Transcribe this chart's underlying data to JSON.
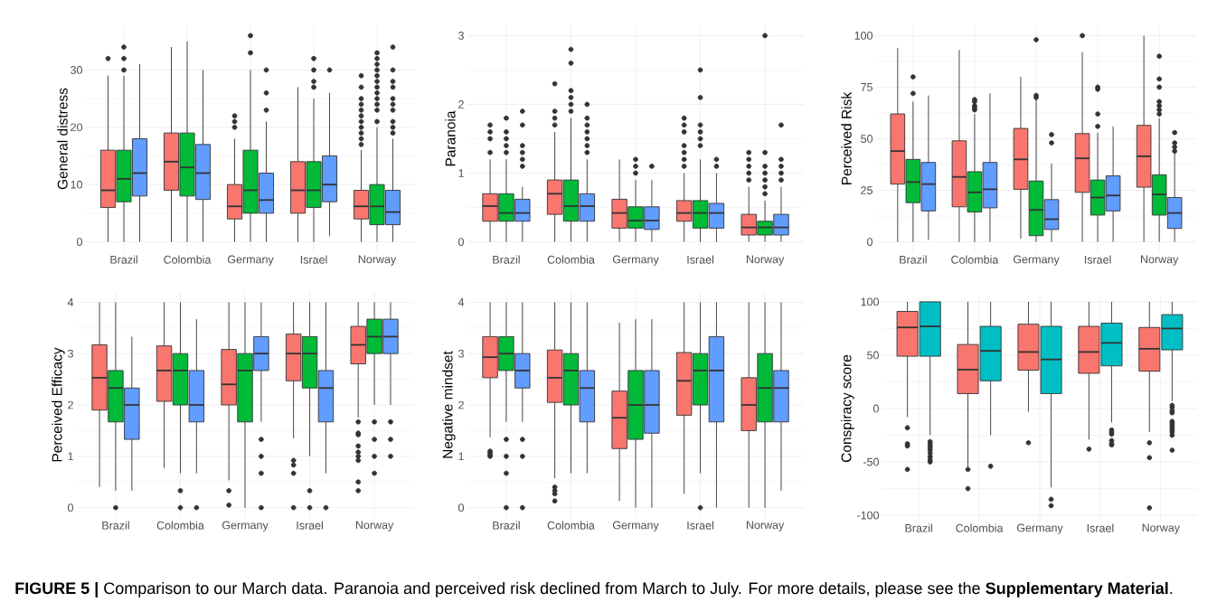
{
  "chart_data": [
    {
      "type": "box",
      "ylabel": "General distress",
      "categories": [
        "Brazil",
        "Colombia",
        "Germany",
        "Israel",
        "Norway"
      ],
      "ylim": [
        -1.8,
        37.8
      ],
      "yticks": [
        0,
        10,
        20,
        30
      ],
      "grid": true,
      "series": [
        {
          "color": "#f8766d",
          "boxes": [
            {
              "low": 0,
              "q1": 6,
              "median": 9,
              "q3": 16,
              "high": 29,
              "outliers": [
                32
              ]
            },
            {
              "low": 0,
              "q1": 9,
              "median": 14,
              "q3": 19,
              "high": 34
            },
            {
              "low": 0,
              "q1": 4,
              "median": 6.2,
              "q3": 10,
              "high": 18,
              "outliers": [
                20,
                21,
                22
              ]
            },
            {
              "low": 0,
              "q1": 5,
              "median": 9,
              "q3": 14,
              "high": 27
            },
            {
              "low": 0,
              "q1": 4,
              "median": 6.2,
              "q3": 9,
              "high": 16,
              "outliers": [
                17,
                18,
                19,
                20,
                21,
                22,
                23,
                24,
                25,
                27,
                29
              ]
            }
          ]
        },
        {
          "color": "#00ba38",
          "boxes": [
            {
              "low": 0,
              "q1": 7,
              "median": 11,
              "q3": 16,
              "high": 29,
              "outliers": [
                30,
                32,
                34
              ]
            },
            {
              "low": 0,
              "q1": 8,
              "median": 13,
              "q3": 19,
              "high": 35
            },
            {
              "low": 0,
              "q1": 5,
              "median": 9,
              "q3": 16,
              "high": 30,
              "outliers": [
                33,
                36
              ]
            },
            {
              "low": 0,
              "q1": 6,
              "median": 9,
              "q3": 14,
              "high": 25,
              "outliers": [
                27,
                28,
                30,
                32
              ]
            },
            {
              "low": 0,
              "q1": 3,
              "median": 6.2,
              "q3": 10,
              "high": 20,
              "outliers": [
                21,
                23,
                24,
                25,
                26,
                27,
                28,
                29,
                30,
                31,
                32,
                33
              ]
            }
          ]
        },
        {
          "color": "#619cff",
          "boxes": [
            {
              "low": 0,
              "q1": 8,
              "median": 12,
              "q3": 18,
              "high": 31
            },
            {
              "low": 0,
              "q1": 7.4,
              "median": 12,
              "q3": 17,
              "high": 30
            },
            {
              "low": 0,
              "q1": 5,
              "median": 7.3,
              "q3": 12,
              "high": 21,
              "outliers": [
                23,
                26,
                30
              ]
            },
            {
              "low": 1,
              "q1": 7,
              "median": 10,
              "q3": 15,
              "high": 26,
              "outliers": [
                30
              ]
            },
            {
              "low": 0,
              "q1": 3,
              "median": 5.2,
              "q3": 9,
              "high": 18,
              "outliers": [
                19,
                20,
                21,
                23,
                24,
                25,
                27,
                28,
                30,
                34
              ]
            }
          ]
        }
      ]
    },
    {
      "type": "box",
      "ylabel": "Paranoia",
      "categories": [
        "Brazil",
        "Colombia",
        "Germany",
        "Israel",
        "Norway"
      ],
      "ylim": [
        -0.15,
        3.15
      ],
      "yticks": [
        0,
        1,
        2,
        3
      ],
      "grid": true,
      "series": [
        {
          "color": "#f8766d",
          "boxes": [
            {
              "low": 0,
              "q1": 0.3,
              "median": 0.52,
              "q3": 0.7,
              "high": 1.2,
              "outliers": [
                1.3,
                1.5,
                1.6,
                1.7
              ]
            },
            {
              "low": 0,
              "q1": 0.4,
              "median": 0.7,
              "q3": 0.9,
              "high": 1.6,
              "outliers": [
                1.7,
                1.8,
                1.9,
                2.3
              ]
            },
            {
              "low": 0,
              "q1": 0.2,
              "median": 0.42,
              "q3": 0.62,
              "high": 1.2
            },
            {
              "low": 0,
              "q1": 0.3,
              "median": 0.42,
              "q3": 0.6,
              "high": 1.0,
              "outliers": [
                1.1,
                1.2,
                1.3,
                1.4,
                1.6,
                1.7,
                1.8
              ]
            },
            {
              "low": 0,
              "q1": 0.1,
              "median": 0.21,
              "q3": 0.4,
              "high": 0.8,
              "outliers": [
                0.9,
                1.0,
                1.1,
                1.2,
                1.3
              ]
            }
          ]
        },
        {
          "color": "#00ba38",
          "boxes": [
            {
              "low": 0,
              "q1": 0.3,
              "median": 0.42,
              "q3": 0.7,
              "high": 1.2,
              "outliers": [
                1.3,
                1.4,
                1.5,
                1.6,
                1.8
              ]
            },
            {
              "low": 0,
              "q1": 0.3,
              "median": 0.52,
              "q3": 0.9,
              "high": 1.8,
              "outliers": [
                1.9,
                2.0,
                2.1,
                2.2,
                2.6,
                2.8
              ]
            },
            {
              "low": 0,
              "q1": 0.2,
              "median": 0.31,
              "q3": 0.51,
              "high": 0.9,
              "outliers": [
                1.0,
                1.1,
                1.2
              ]
            },
            {
              "low": 0,
              "q1": 0.2,
              "median": 0.42,
              "q3": 0.6,
              "high": 1.2,
              "outliers": [
                1.4,
                1.5,
                1.6,
                1.7,
                2.1,
                2.5
              ]
            },
            {
              "low": 0,
              "q1": 0.1,
              "median": 0.21,
              "q3": 0.3,
              "high": 0.6,
              "outliers": [
                0.7,
                0.8,
                0.9,
                1.0,
                1.1,
                1.3,
                3.0
              ]
            }
          ]
        },
        {
          "color": "#619cff",
          "boxes": [
            {
              "low": 0,
              "q1": 0.3,
              "median": 0.42,
              "q3": 0.62,
              "high": 0.8,
              "outliers": [
                1.1,
                1.2,
                1.3,
                1.4,
                1.7,
                1.9
              ]
            },
            {
              "low": 0,
              "q1": 0.3,
              "median": 0.52,
              "q3": 0.7,
              "high": 1.2,
              "outliers": [
                1.3,
                1.4,
                1.5,
                1.6,
                1.7,
                1.8,
                2.0
              ]
            },
            {
              "low": 0,
              "q1": 0.18,
              "median": 0.31,
              "q3": 0.51,
              "high": 0.9,
              "outliers": [
                1.1
              ]
            },
            {
              "low": 0,
              "q1": 0.2,
              "median": 0.42,
              "q3": 0.56,
              "high": 1.0,
              "outliers": [
                1.1,
                1.2
              ]
            },
            {
              "low": 0,
              "q1": 0.1,
              "median": 0.21,
              "q3": 0.4,
              "high": 0.8,
              "outliers": [
                0.9,
                1.0,
                1.1,
                1.2,
                1.7
              ]
            }
          ]
        }
      ]
    },
    {
      "type": "box",
      "ylabel": "Perceived Risk",
      "categories": [
        "Brazil",
        "Colombia",
        "Germany",
        "Israel",
        "Norway"
      ],
      "ylim": [
        -5,
        105
      ],
      "yticks": [
        0,
        25,
        50,
        75,
        100
      ],
      "grid": true,
      "series": [
        {
          "color": "#f8766d",
          "boxes": [
            {
              "low": 0,
              "q1": 28,
              "median": 44,
              "q3": 62,
              "high": 94
            },
            {
              "low": 0,
              "q1": 17,
              "median": 31.5,
              "q3": 49,
              "high": 93
            },
            {
              "low": 1.5,
              "q1": 25.5,
              "median": 40,
              "q3": 55,
              "high": 80
            },
            {
              "low": 0,
              "q1": 24,
              "median": 40.5,
              "q3": 52.5,
              "high": 92,
              "outliers": [
                100
              ]
            },
            {
              "low": 0,
              "q1": 26.5,
              "median": 41.5,
              "q3": 56.5,
              "high": 100
            }
          ]
        },
        {
          "color": "#00ba38",
          "boxes": [
            {
              "low": 0,
              "q1": 19,
              "median": 29,
              "q3": 40,
              "high": 68,
              "outliers": [
                72,
                80
              ]
            },
            {
              "low": 0,
              "q1": 14.5,
              "median": 24,
              "q3": 34,
              "high": 62,
              "outliers": [
                64,
                65,
                66,
                68,
                69
              ]
            },
            {
              "low": 0,
              "q1": 3,
              "median": 15.5,
              "q3": 29.5,
              "high": 69,
              "outliers": [
                70,
                71,
                98
              ]
            },
            {
              "low": 0,
              "q1": 13,
              "median": 21.5,
              "q3": 30,
              "high": 53,
              "outliers": [
                56,
                62,
                74,
                75
              ]
            },
            {
              "low": 0,
              "q1": 13,
              "median": 23,
              "q3": 32.5,
              "high": 60,
              "outliers": [
                62,
                64,
                66,
                68,
                75,
                79,
                90
              ]
            }
          ]
        },
        {
          "color": "#619cff",
          "boxes": [
            {
              "low": 1,
              "q1": 15,
              "median": 28,
              "q3": 38.5,
              "high": 71
            },
            {
              "low": 0,
              "q1": 16.5,
              "median": 25.5,
              "q3": 38.5,
              "high": 72
            },
            {
              "low": 0,
              "q1": 6,
              "median": 11,
              "q3": 20.5,
              "high": 38,
              "outliers": [
                48,
                52
              ]
            },
            {
              "low": 0,
              "q1": 15,
              "median": 22.5,
              "q3": 32,
              "high": 56
            },
            {
              "low": 0,
              "q1": 6.5,
              "median": 14,
              "q3": 21.5,
              "high": 43,
              "outliers": [
                44,
                46,
                48,
                53
              ]
            }
          ]
        }
      ]
    },
    {
      "type": "box",
      "ylabel": "Perceived Efficacy",
      "categories": [
        "Brazil",
        "Colombia",
        "Germany",
        "Israel",
        "Norway"
      ],
      "ylim": [
        -0.2,
        4.2
      ],
      "yticks": [
        0,
        1,
        2,
        3,
        4
      ],
      "grid": true,
      "series": [
        {
          "color": "#f8766d",
          "boxes": [
            {
              "low": 0.4,
              "q1": 1.9,
              "median": 2.53,
              "q3": 3.17,
              "high": 4
            },
            {
              "low": 0.77,
              "q1": 2.07,
              "median": 2.67,
              "q3": 3.15,
              "high": 4
            },
            {
              "low": 0.53,
              "q1": 2,
              "median": 2.4,
              "q3": 3.08,
              "high": 4,
              "outliers": [
                0.05,
                0.33
              ]
            },
            {
              "low": 1.35,
              "q1": 2.47,
              "median": 3.0,
              "q3": 3.38,
              "high": 4,
              "outliers": [
                0,
                0.67,
                0.83,
                0.92
              ]
            },
            {
              "low": 1.75,
              "q1": 2.8,
              "median": 3.17,
              "q3": 3.53,
              "high": 4,
              "outliers": [
                0.33,
                0.5,
                0.92,
                1.0,
                1.08,
                1.2,
                1.42,
                1.45,
                1.67
              ]
            }
          ]
        },
        {
          "color": "#00ba38",
          "boxes": [
            {
              "low": 0.33,
              "q1": 1.67,
              "median": 2.33,
              "q3": 2.67,
              "high": 4,
              "outliers": [
                0
              ]
            },
            {
              "low": 0.67,
              "q1": 2,
              "median": 2.67,
              "q3": 3,
              "high": 4,
              "outliers": [
                0,
                0.33
              ]
            },
            {
              "low": 0,
              "q1": 1.67,
              "median": 2.67,
              "q3": 3,
              "high": 4
            },
            {
              "low": 1.0,
              "q1": 2.33,
              "median": 3.0,
              "q3": 3.33,
              "high": 4,
              "outliers": [
                0,
                0.33
              ]
            },
            {
              "low": 2.0,
              "q1": 3.0,
              "median": 3.33,
              "q3": 3.67,
              "high": 4,
              "outliers": [
                0.67,
                1,
                1.33,
                1.67
              ]
            }
          ]
        },
        {
          "color": "#619cff",
          "boxes": [
            {
              "low": 0.33,
              "q1": 1.33,
              "median": 2.0,
              "q3": 2.33,
              "high": 3.33
            },
            {
              "low": 0.67,
              "q1": 1.67,
              "median": 2.0,
              "q3": 2.67,
              "high": 3.67,
              "outliers": [
                0
              ]
            },
            {
              "low": 1.67,
              "q1": 2.67,
              "median": 3.0,
              "q3": 3.33,
              "high": 4,
              "outliers": [
                0,
                0.67,
                1,
                1.33
              ]
            },
            {
              "low": 0.67,
              "q1": 1.67,
              "median": 2.33,
              "q3": 2.67,
              "high": 4,
              "outliers": [
                0
              ]
            },
            {
              "low": 2.0,
              "q1": 3.0,
              "median": 3.33,
              "q3": 3.67,
              "high": 4,
              "outliers": [
                1,
                1.33,
                1.67
              ]
            }
          ]
        }
      ]
    },
    {
      "type": "box",
      "ylabel": "Negative mindset",
      "categories": [
        "Brazil",
        "Colombia",
        "Germany",
        "Israel",
        "Norway"
      ],
      "ylim": [
        -0.2,
        4.2
      ],
      "yticks": [
        0,
        1,
        2,
        3,
        4
      ],
      "grid": true,
      "series": [
        {
          "color": "#f8766d",
          "boxes": [
            {
              "low": 1.37,
              "q1": 2.53,
              "median": 2.93,
              "q3": 3.33,
              "high": 4,
              "outliers": [
                1.0,
                1.03,
                1.07,
                1.1
              ]
            },
            {
              "low": 0.57,
              "q1": 2.05,
              "median": 2.53,
              "q3": 3.07,
              "high": 4,
              "outliers": [
                0.13,
                0.27,
                0.33,
                0.4
              ]
            },
            {
              "low": 0.13,
              "q1": 1.15,
              "median": 1.75,
              "q3": 2.27,
              "high": 3.6
            },
            {
              "low": 0.27,
              "q1": 1.8,
              "median": 2.47,
              "q3": 3.02,
              "high": 4
            },
            {
              "low": 0,
              "q1": 1.5,
              "median": 2.0,
              "q3": 2.53,
              "high": 4
            }
          ]
        },
        {
          "color": "#00ba38",
          "boxes": [
            {
              "low": 1.67,
              "q1": 2.67,
              "median": 3.0,
              "q3": 3.33,
              "high": 4,
              "outliers": [
                0,
                0.67,
                1.0,
                1.33
              ]
            },
            {
              "low": 0.67,
              "q1": 2,
              "median": 2.67,
              "q3": 3,
              "high": 4
            },
            {
              "low": 0,
              "q1": 1.33,
              "median": 2.0,
              "q3": 2.67,
              "high": 3.67
            },
            {
              "low": 0.67,
              "q1": 2,
              "median": 2.67,
              "q3": 3,
              "high": 4,
              "outliers": [
                0
              ]
            },
            {
              "low": 0,
              "q1": 1.67,
              "median": 2.33,
              "q3": 3.0,
              "high": 4
            }
          ]
        },
        {
          "color": "#619cff",
          "boxes": [
            {
              "low": 1.67,
              "q1": 2.33,
              "median": 2.67,
              "q3": 3.0,
              "high": 4,
              "outliers": [
                0,
                1.0,
                1.33
              ]
            },
            {
              "low": 0.67,
              "q1": 1.67,
              "median": 2.33,
              "q3": 2.67,
              "high": 4
            },
            {
              "low": 0,
              "q1": 1.45,
              "median": 2.0,
              "q3": 2.67,
              "high": 3.67
            },
            {
              "low": 0,
              "q1": 1.67,
              "median": 2.67,
              "q3": 3.33,
              "high": 4
            },
            {
              "low": 0.33,
              "q1": 1.67,
              "median": 2.33,
              "q3": 2.67,
              "high": 4
            }
          ]
        }
      ]
    },
    {
      "type": "box",
      "ylabel": "Conspiracy score",
      "categories": [
        "Brazil",
        "Colombia",
        "Germany",
        "Israel",
        "Norway"
      ],
      "ylim": [
        -105,
        105
      ],
      "yticks": [
        -100,
        -50,
        0,
        50,
        100
      ],
      "grid": true,
      "annotations": [
        "**FIGURE 5 |** Comparison to our March data. Paranoia and perceived risk declined from March to July. For more details, please see the **Supplementary Material**."
      ],
      "series": [
        {
          "color": "#f8766d",
          "boxes": [
            {
              "low": -8,
              "q1": 49,
              "median": 76,
              "q3": 91,
              "high": 100,
              "outliers": [
                -18,
                -33,
                -35,
                -57
              ]
            },
            {
              "low": -55,
              "q1": 14,
              "median": 36.5,
              "q3": 60,
              "high": 100,
              "outliers": [
                -57,
                -75
              ]
            },
            {
              "low": -3,
              "q1": 36,
              "median": 53,
              "q3": 79,
              "high": 100,
              "outliers": [
                -32
              ]
            },
            {
              "low": -29,
              "q1": 33,
              "median": 53,
              "q3": 77,
              "high": 100,
              "outliers": [
                -38
              ]
            },
            {
              "low": -22,
              "q1": 35,
              "median": 56,
              "q3": 76,
              "high": 100,
              "outliers": [
                -32,
                -46,
                -93
              ]
            }
          ]
        },
        {
          "color": "#00bfc4",
          "boxes": [
            {
              "low": -25,
              "q1": 49,
              "median": 77,
              "q3": 100,
              "high": 100,
              "outliers": [
                -31,
                -33,
                -35,
                -37,
                -39,
                -42,
                -45,
                -48,
                -50
              ]
            },
            {
              "low": -25,
              "q1": 26,
              "median": 54,
              "q3": 77,
              "high": 100,
              "outliers": [
                -54
              ]
            },
            {
              "low": -74,
              "q1": 14,
              "median": 46,
              "q3": 77,
              "high": 100,
              "outliers": [
                -85,
                -91
              ]
            },
            {
              "low": -13,
              "q1": 40,
              "median": 61.5,
              "q3": 80,
              "high": 100,
              "outliers": [
                -20,
                -22,
                -24,
                -30,
                -33,
                -34
              ]
            },
            {
              "low": 7,
              "q1": 55,
              "median": 75,
              "q3": 88,
              "high": 100,
              "outliers": [
                3,
                1,
                -2,
                -4,
                -12,
                -14,
                -16,
                -18,
                -20,
                -22,
                -25,
                -39
              ]
            }
          ]
        }
      ]
    }
  ]
}
